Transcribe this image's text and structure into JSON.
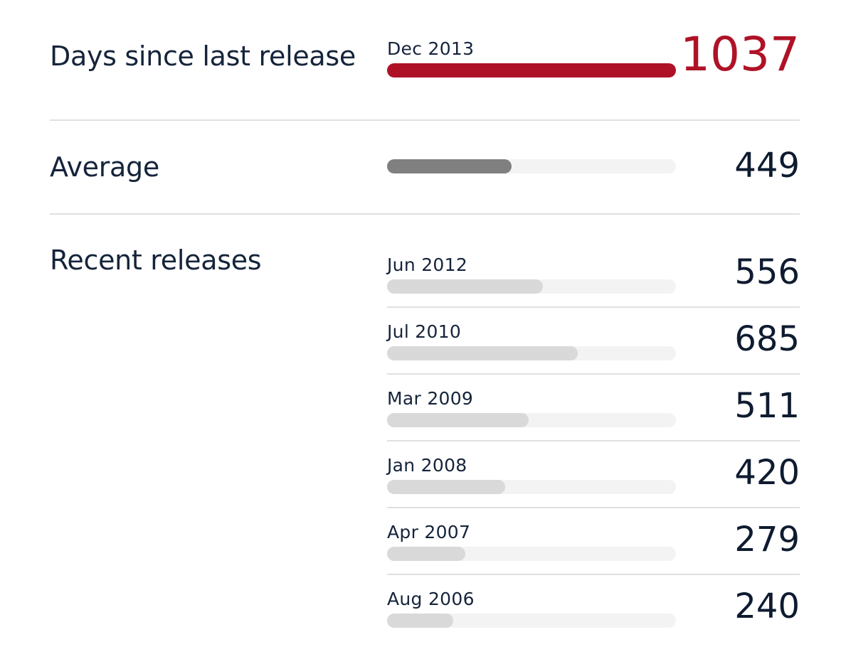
{
  "current": {
    "title": "Days since last release",
    "date": "Dec 2013",
    "days": 1037,
    "fill_fraction": 1.0,
    "color": "#af1226"
  },
  "average": {
    "title": "Average",
    "days": 449,
    "fill_fraction": 0.43,
    "color": "#808080"
  },
  "recent": {
    "title": "Recent releases",
    "fill_color": "#d9d9d9",
    "track_color": "#f3f3f3",
    "releases": [
      {
        "date": "Jun 2012",
        "days": 556,
        "fill_fraction": 0.54
      },
      {
        "date": "Jul 2010",
        "days": 685,
        "fill_fraction": 0.66
      },
      {
        "date": "Mar 2009",
        "days": 511,
        "fill_fraction": 0.49
      },
      {
        "date": "Jan 2008",
        "days": 420,
        "fill_fraction": 0.41
      },
      {
        "date": "Apr 2007",
        "days": 279,
        "fill_fraction": 0.27
      },
      {
        "date": "Aug 2006",
        "days": 240,
        "fill_fraction": 0.23
      }
    ]
  }
}
